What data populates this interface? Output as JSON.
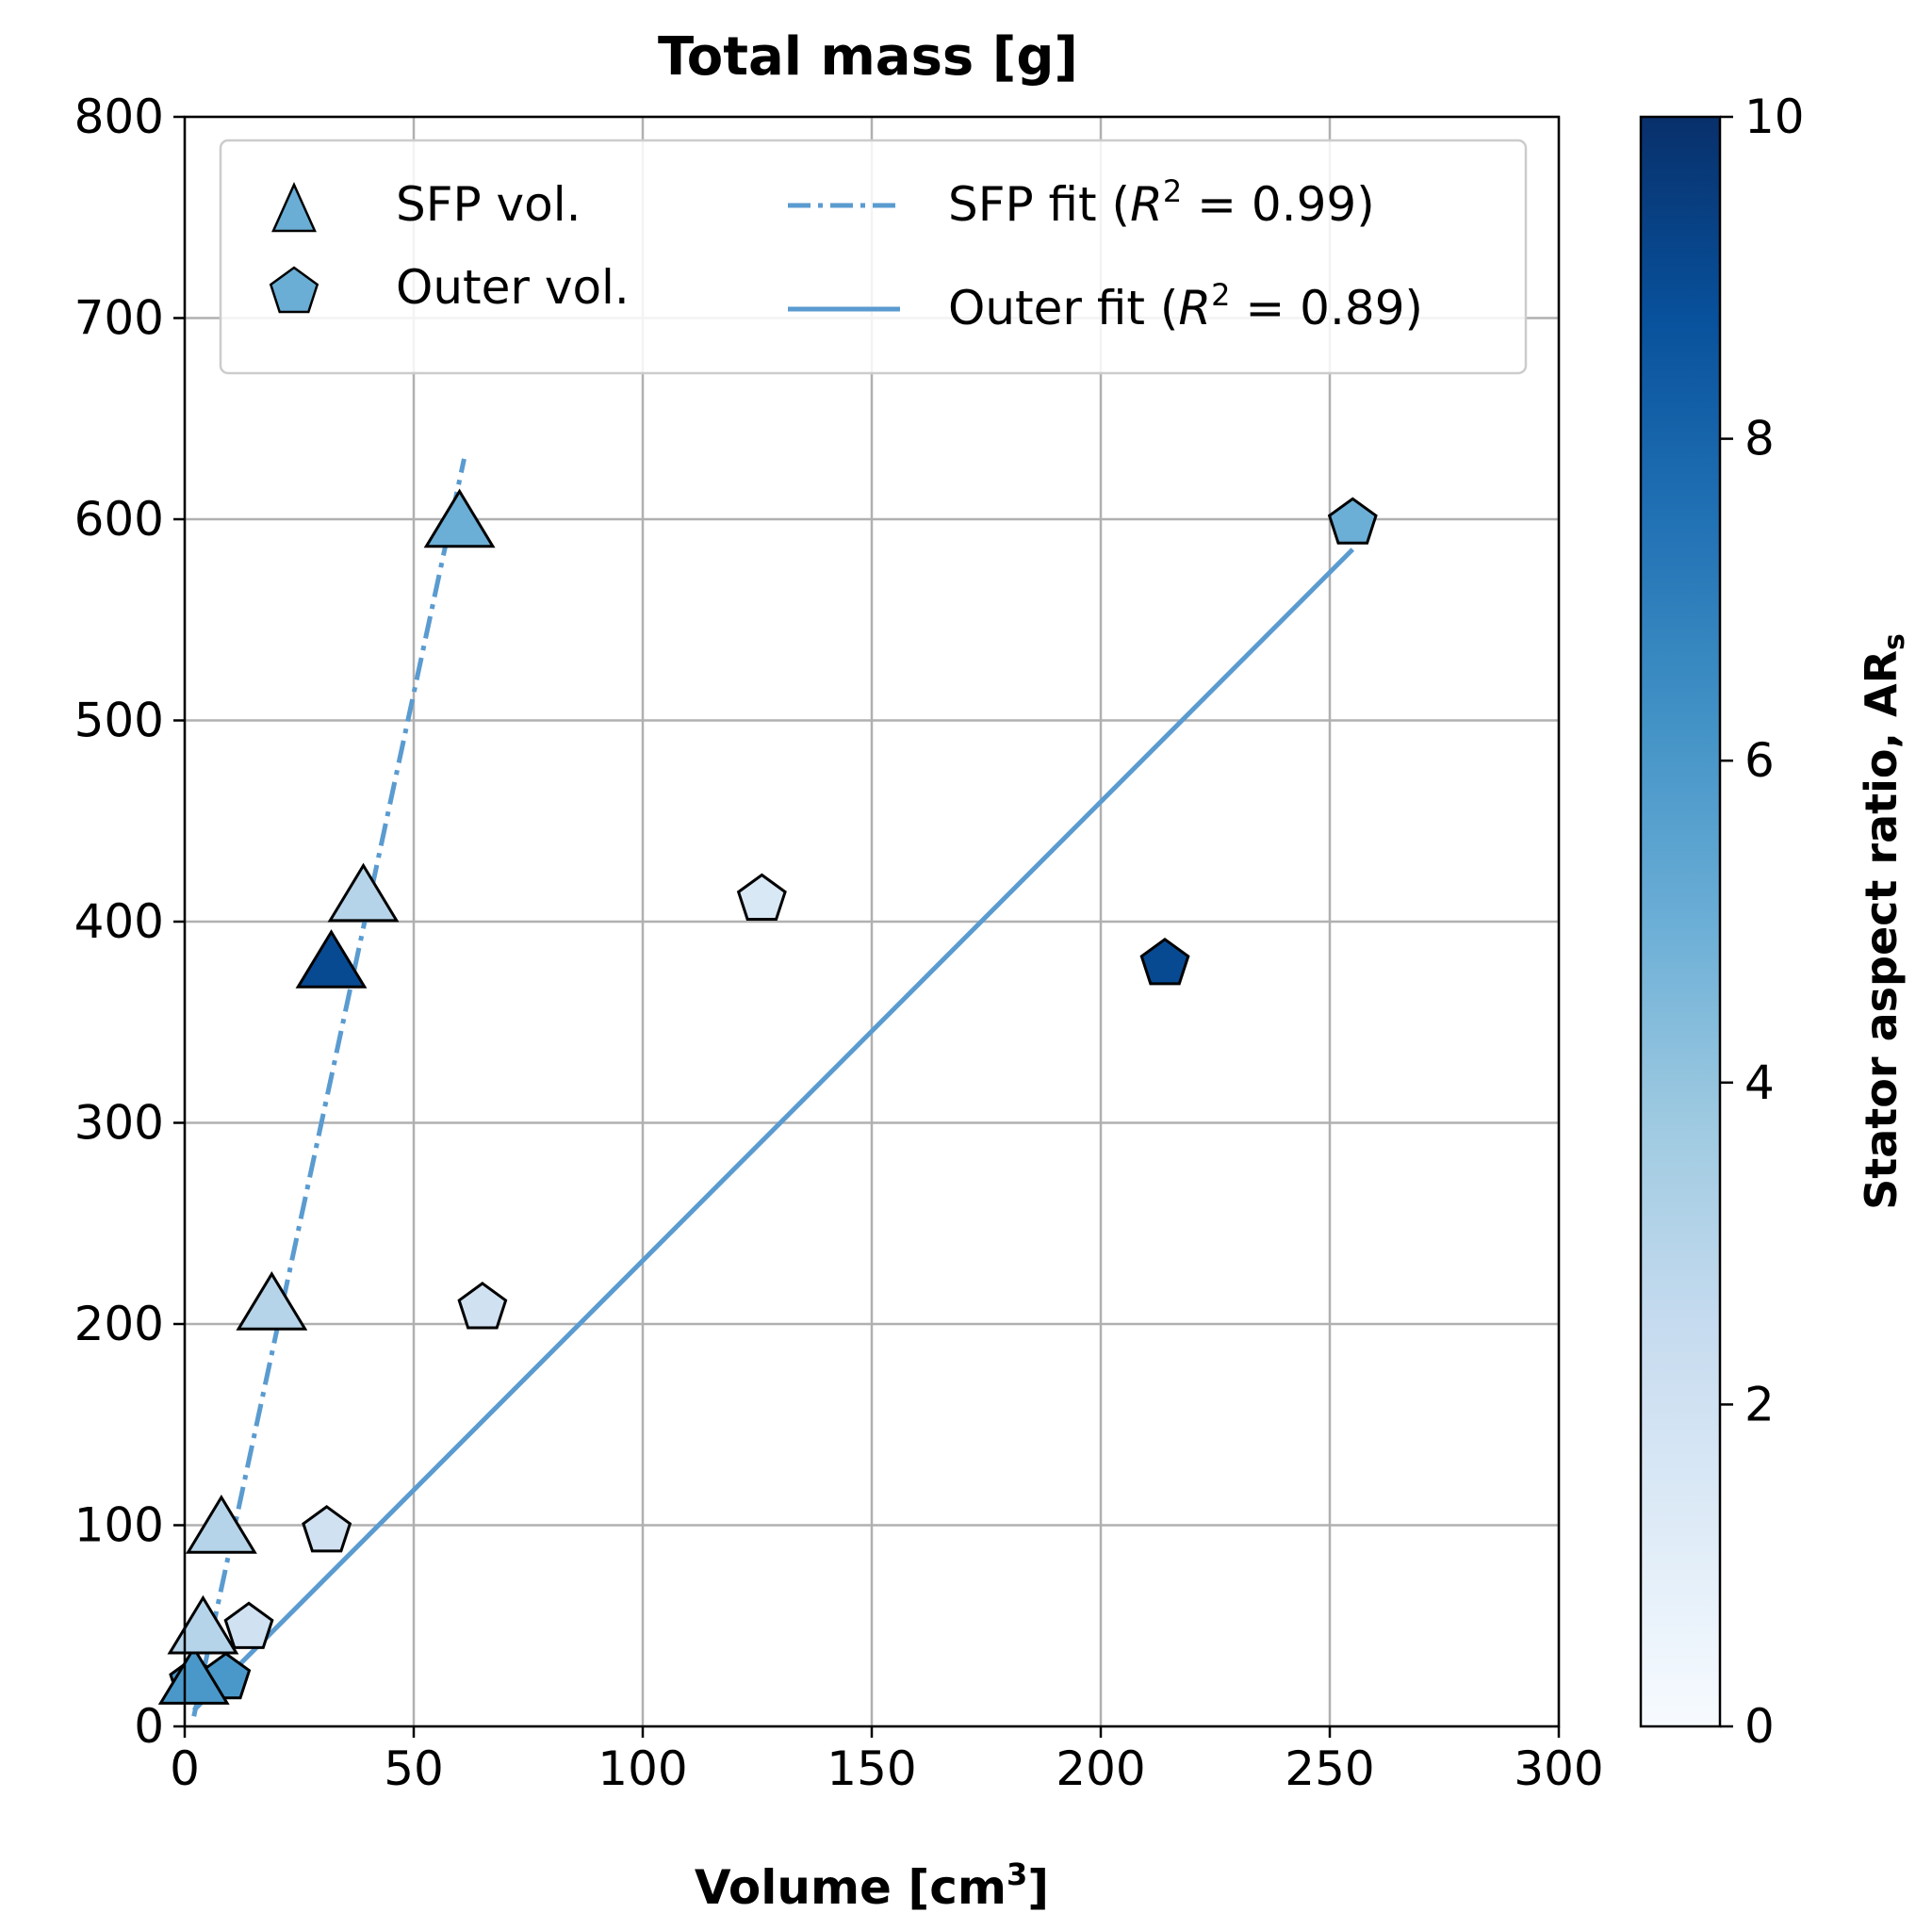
{
  "chart_data": {
    "type": "scatter",
    "title": "Total mass [g]",
    "xlabel": "Volume [cm",
    "xlabel_sup": "3",
    "xlabel_end": "]",
    "ylabel": "",
    "xlim": [
      0,
      300
    ],
    "ylim": [
      0,
      800
    ],
    "xticks": [
      0,
      50,
      100,
      150,
      200,
      250,
      300
    ],
    "yticks": [
      0,
      100,
      200,
      300,
      400,
      500,
      600,
      700,
      800
    ],
    "grid": true,
    "legend_position": "top",
    "series": [
      {
        "name": "SFP vol.",
        "marker": "triangle",
        "points": [
          {
            "x": 2,
            "y": 22,
            "ar": 6
          },
          {
            "x": 4,
            "y": 47,
            "ar": 3
          },
          {
            "x": 8,
            "y": 97,
            "ar": 3
          },
          {
            "x": 19,
            "y": 208,
            "ar": 3
          },
          {
            "x": 32,
            "y": 378,
            "ar": 9
          },
          {
            "x": 39,
            "y": 411,
            "ar": 3
          },
          {
            "x": 60,
            "y": 597,
            "ar": 5
          }
        ]
      },
      {
        "name": "Outer vol.",
        "marker": "pentagon",
        "points": [
          {
            "x": 2,
            "y": 22,
            "ar": 6
          },
          {
            "x": 9,
            "y": 24,
            "ar": 6
          },
          {
            "x": 14,
            "y": 49,
            "ar": 2
          },
          {
            "x": 31,
            "y": 97,
            "ar": 2
          },
          {
            "x": 65,
            "y": 208,
            "ar": 2
          },
          {
            "x": 126,
            "y": 411,
            "ar": 1.5
          },
          {
            "x": 214,
            "y": 379,
            "ar": 9
          },
          {
            "x": 255,
            "y": 598,
            "ar": 5
          }
        ]
      }
    ],
    "fits": [
      {
        "name": "SFP fit",
        "r2_label": "= 0.99)",
        "style": "dashdot",
        "x": [
          2,
          61
        ],
        "y": [
          5,
          630
        ]
      },
      {
        "name": "Outer fit",
        "r2_label": "= 0.89)",
        "style": "solid",
        "x": [
          2,
          255
        ],
        "y": [
          8,
          585
        ]
      }
    ],
    "colorbar": {
      "label": "Stator aspect ratio, AR",
      "label_sub": "s",
      "range": [
        0,
        10
      ],
      "ticks": [
        0,
        2,
        4,
        6,
        8,
        10
      ],
      "cmap": "Blues"
    }
  },
  "colors": {
    "fit_line": "#5a9bd0",
    "grid": "#b0b0b0",
    "edge": "#000000"
  }
}
